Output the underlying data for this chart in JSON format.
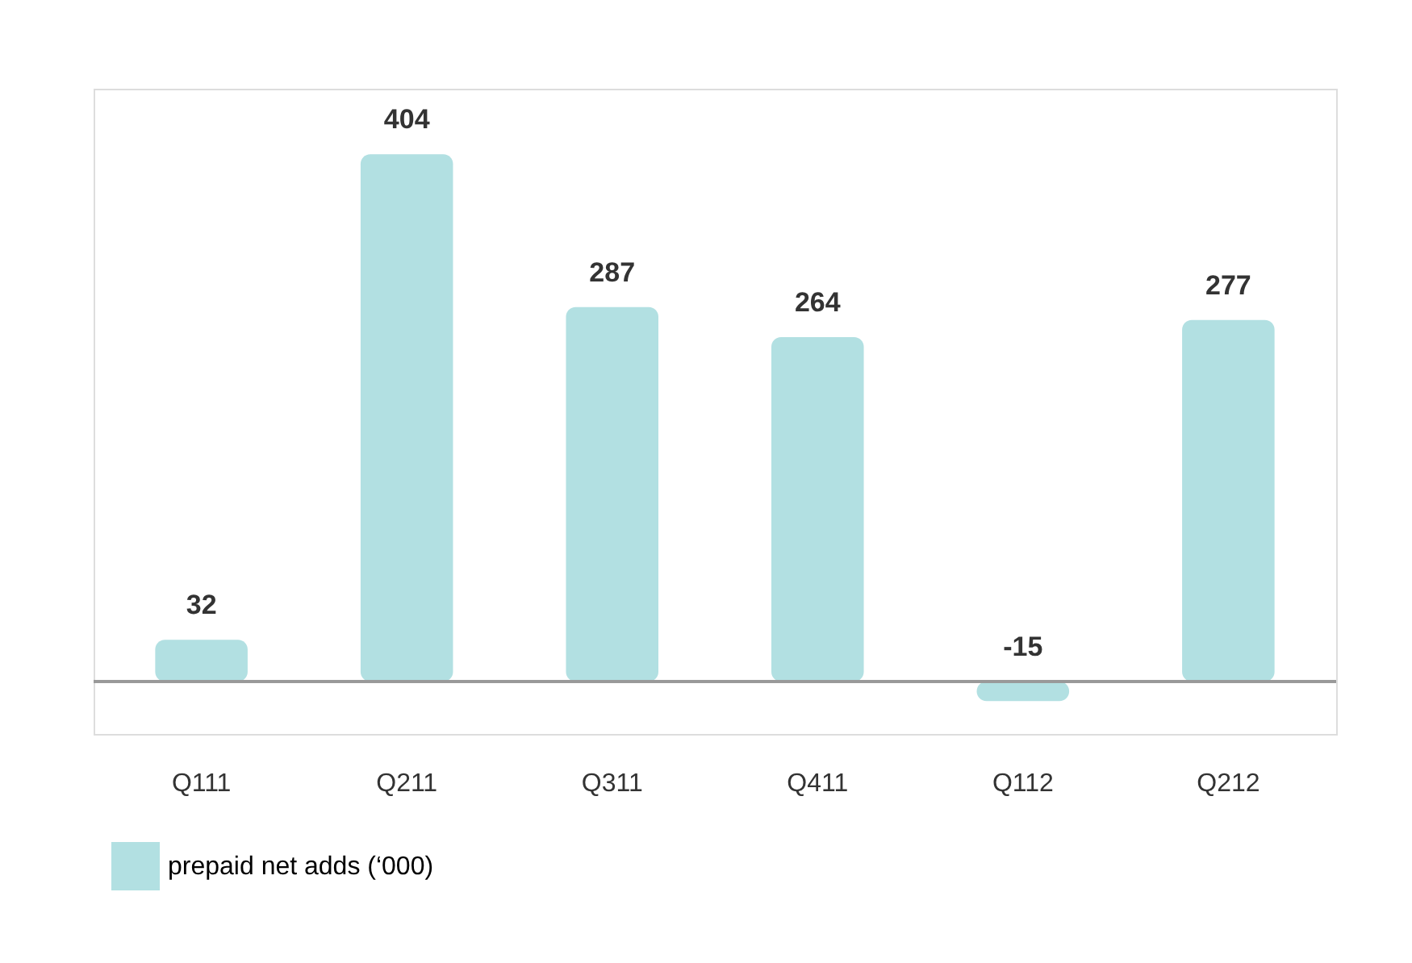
{
  "chart_data": {
    "type": "bar",
    "categories": [
      "Q111",
      "Q211",
      "Q311",
      "Q411",
      "Q112",
      "Q212"
    ],
    "series": [
      {
        "name": "prepaid net adds (‘000)",
        "color": "#b2e0e2",
        "values": [
          32,
          404,
          287,
          264,
          -15,
          277
        ]
      }
    ],
    "data_labels": true,
    "legend": "bottom",
    "grid": false
  }
}
